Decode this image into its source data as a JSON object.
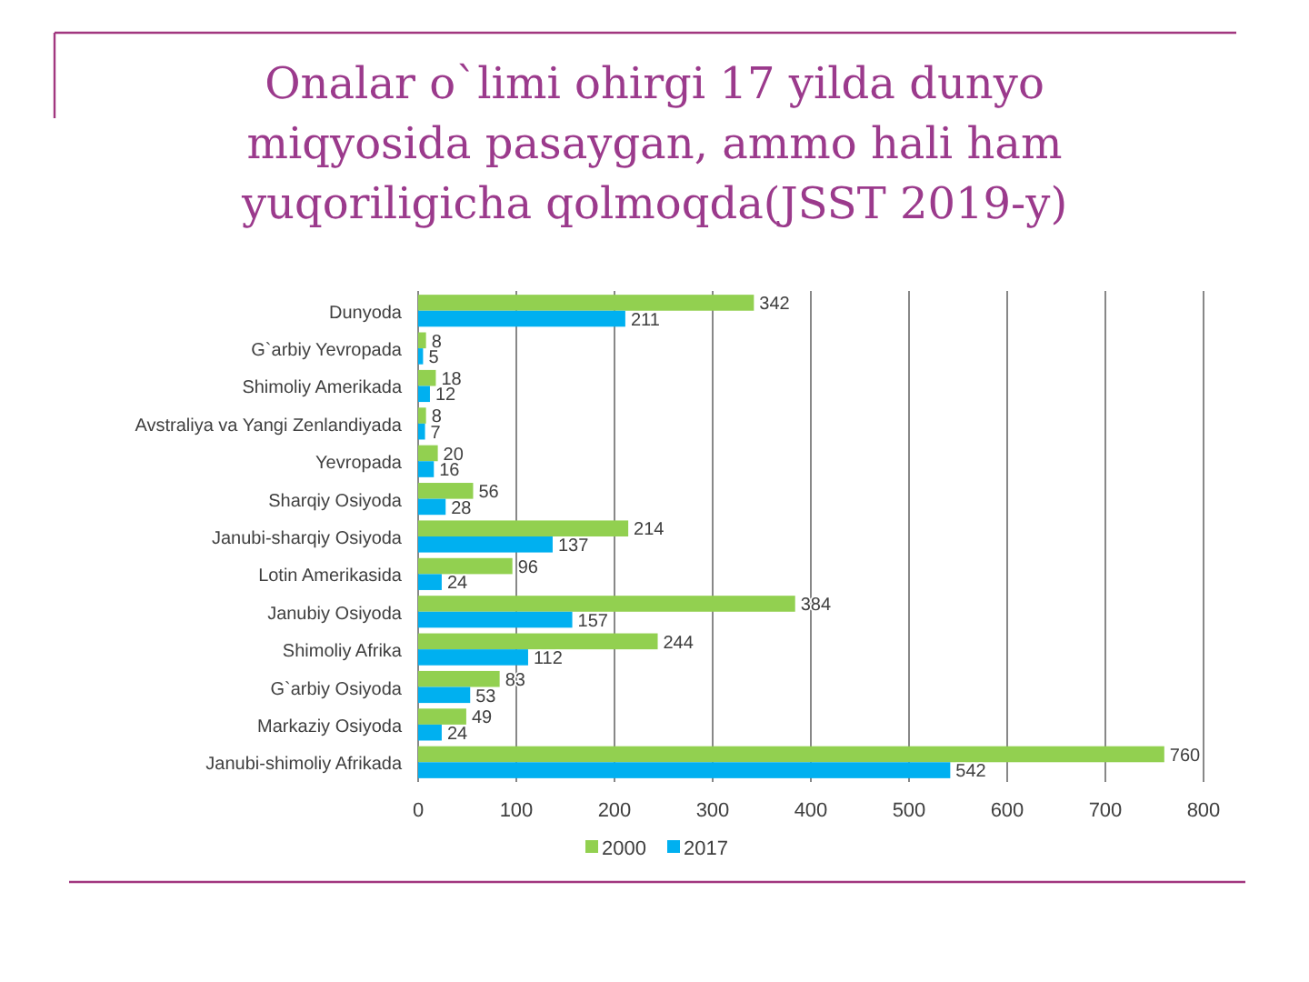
{
  "chart_data": {
    "type": "bar",
    "orientation": "horizontal",
    "title": "Onalar o`limi ohirgi 17 yilda dunyo miqyosida pasaygan, ammo hali ham yuqoriligicha qolmoqda(JSST 2019-y)",
    "categories": [
      "Dunyoda",
      "G`arbiy Yevropada",
      "Shimoliy Amerikada",
      "Avstraliya va Yangi Zenlandiyada",
      "Yevropada",
      "Sharqiy Osiyoda",
      "Janubi-sharqiy Osiyoda",
      "Lotin Amerikasida",
      "Janubiy Osiyoda",
      "Shimoliy Afrika",
      "G`arbiy Osiyoda",
      "Markaziy Osiyoda",
      "Janubi-shimoliy Afrikada"
    ],
    "series": [
      {
        "name": "2000",
        "color": "#92d050",
        "values": [
          342,
          8,
          18,
          8,
          20,
          56,
          214,
          96,
          384,
          244,
          83,
          49,
          760
        ]
      },
      {
        "name": "2017",
        "color": "#00b0f0",
        "values": [
          211,
          5,
          12,
          7,
          16,
          28,
          137,
          24,
          157,
          112,
          53,
          24,
          542
        ]
      }
    ],
    "xlim": [
      0,
      800
    ],
    "xticks": [
      0,
      100,
      200,
      300,
      400,
      500,
      600,
      700,
      800
    ],
    "grid": "x",
    "legend": "bottom",
    "data_labels": true
  }
}
